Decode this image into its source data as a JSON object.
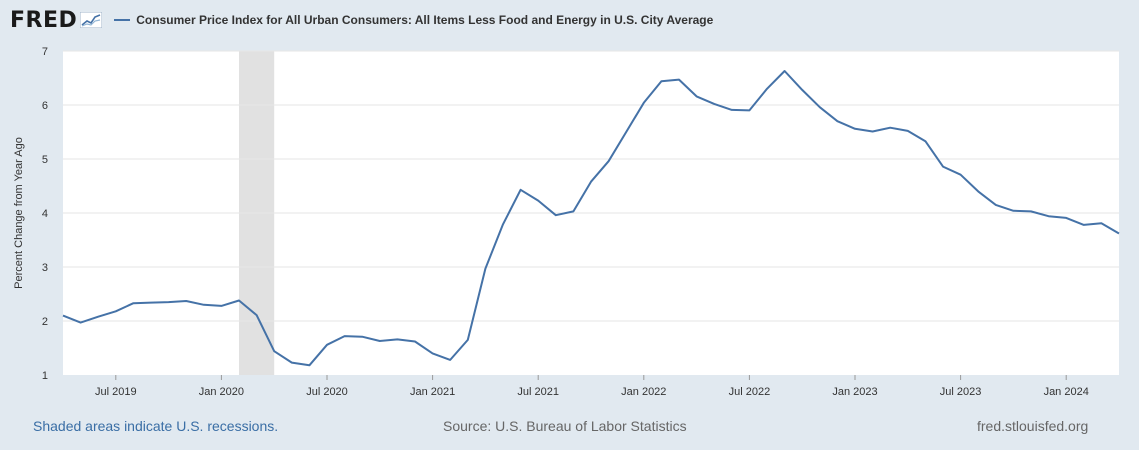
{
  "header": {
    "logo_text": "FRED",
    "legend_label": "Consumer Price Index for All Urban Consumers: All Items Less Food and Energy in U.S. City Average"
  },
  "footer": {
    "recession_note": "Shaded areas indicate U.S. recessions.",
    "source": "Source: U.S. Bureau of Labor Statistics",
    "site": "fred.stlouisfed.org"
  },
  "colors": {
    "series": "#4572a7",
    "recession": "#e1e1e1",
    "page_background": "#e1e9f0",
    "plot_background": "#ffffff"
  },
  "chart_data": {
    "type": "line",
    "ylabel": "Percent Change from Year Ago",
    "ylim": [
      1,
      7
    ],
    "yticks": [
      1,
      2,
      3,
      4,
      5,
      6,
      7
    ],
    "xlim": [
      "2019-04",
      "2024-04"
    ],
    "xticks": [
      {
        "date": "2019-07",
        "label": "Jul 2019"
      },
      {
        "date": "2020-01",
        "label": "Jan 2020"
      },
      {
        "date": "2020-07",
        "label": "Jul 2020"
      },
      {
        "date": "2021-01",
        "label": "Jan 2021"
      },
      {
        "date": "2021-07",
        "label": "Jul 2021"
      },
      {
        "date": "2022-01",
        "label": "Jan 2022"
      },
      {
        "date": "2022-07",
        "label": "Jul 2022"
      },
      {
        "date": "2023-01",
        "label": "Jan 2023"
      },
      {
        "date": "2023-07",
        "label": "Jul 2023"
      },
      {
        "date": "2024-01",
        "label": "Jan 2024"
      }
    ],
    "grid": true,
    "recessions": [
      {
        "start": "2020-02",
        "end": "2020-04"
      }
    ],
    "series": [
      {
        "name": "Consumer Price Index for All Urban Consumers: All Items Less Food and Energy in U.S. City Average",
        "x": [
          "2019-04",
          "2019-05",
          "2019-06",
          "2019-07",
          "2019-08",
          "2019-09",
          "2019-10",
          "2019-11",
          "2019-12",
          "2020-01",
          "2020-02",
          "2020-03",
          "2020-04",
          "2020-05",
          "2020-06",
          "2020-07",
          "2020-08",
          "2020-09",
          "2020-10",
          "2020-11",
          "2020-12",
          "2021-01",
          "2021-02",
          "2021-03",
          "2021-04",
          "2021-05",
          "2021-06",
          "2021-07",
          "2021-08",
          "2021-09",
          "2021-10",
          "2021-11",
          "2021-12",
          "2022-01",
          "2022-02",
          "2022-03",
          "2022-04",
          "2022-05",
          "2022-06",
          "2022-07",
          "2022-08",
          "2022-09",
          "2022-10",
          "2022-11",
          "2022-12",
          "2023-01",
          "2023-02",
          "2023-03",
          "2023-04",
          "2023-05",
          "2023-06",
          "2023-07",
          "2023-08",
          "2023-09",
          "2023-10",
          "2023-11",
          "2023-12",
          "2024-01",
          "2024-02",
          "2024-03",
          "2024-04"
        ],
        "values": [
          2.1,
          1.97,
          2.08,
          2.18,
          2.33,
          2.34,
          2.35,
          2.37,
          2.3,
          2.28,
          2.38,
          2.11,
          1.44,
          1.23,
          1.18,
          1.56,
          1.72,
          1.71,
          1.63,
          1.66,
          1.62,
          1.4,
          1.28,
          1.65,
          2.97,
          3.79,
          4.43,
          4.23,
          3.96,
          4.03,
          4.58,
          4.96,
          5.5,
          6.04,
          6.44,
          6.47,
          6.16,
          6.02,
          5.91,
          5.9,
          6.3,
          6.63,
          6.28,
          5.96,
          5.7,
          5.56,
          5.51,
          5.58,
          5.52,
          5.33,
          4.86,
          4.71,
          4.4,
          4.15,
          4.04,
          4.03,
          3.94,
          3.91,
          3.78,
          3.81,
          3.62
        ]
      }
    ]
  }
}
